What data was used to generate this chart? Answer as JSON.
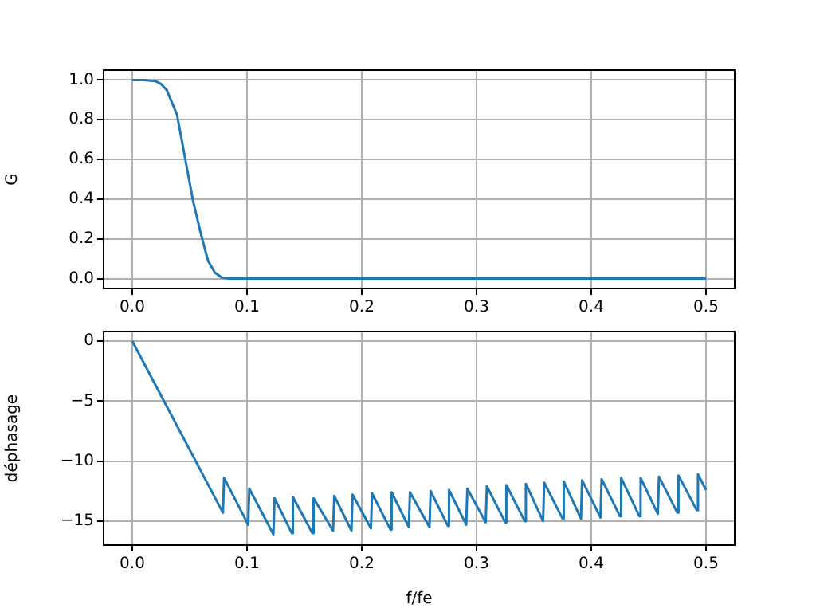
{
  "chart_data": [
    {
      "type": "line",
      "ylabel": "G",
      "color": "#1f77b4",
      "grid": true,
      "x": [
        0,
        0.01,
        0.02,
        0.025,
        0.03,
        0.039,
        0.046,
        0.053,
        0.06,
        0.066,
        0.072,
        0.078,
        0.085,
        0.1,
        0.2,
        0.3,
        0.4,
        0.5
      ],
      "values": [
        1.0,
        1.0,
        0.995,
        0.98,
        0.95,
        0.825,
        0.607,
        0.39,
        0.22,
        0.09,
        0.03,
        0.005,
        0,
        0,
        0,
        0,
        0,
        0
      ],
      "xlim": [
        -0.025,
        0.525
      ],
      "ylim": [
        -0.05,
        1.05
      ],
      "xticks": [
        {
          "value": 0,
          "label": "0.0"
        },
        0.1,
        0.2,
        0.3,
        0.4,
        0.5
      ],
      "yticks": [
        {
          "value": 0,
          "label": "0.0"
        },
        0.2,
        0.4,
        0.6,
        0.8,
        {
          "value": 1,
          "label": "1.0"
        }
      ]
    },
    {
      "type": "line",
      "xlabel": "f/fe",
      "ylabel": "déphasage",
      "color": "#1f77b4",
      "grid": true,
      "x": [
        0,
        0.079,
        0.08,
        0.101,
        0.102,
        0.123,
        0.124,
        0.139,
        0.14,
        0.157,
        0.158,
        0.175,
        0.176,
        0.191,
        0.192,
        0.208,
        0.209,
        0.225,
        0.226,
        0.241,
        0.242,
        0.259,
        0.26,
        0.275,
        0.276,
        0.291,
        0.292,
        0.308,
        0.309,
        0.325,
        0.326,
        0.342,
        0.343,
        0.358,
        0.359,
        0.375,
        0.376,
        0.391,
        0.392,
        0.408,
        0.409,
        0.425,
        0.426,
        0.442,
        0.443,
        0.458,
        0.459,
        0.475,
        0.476,
        0.492,
        0.493,
        0.5
      ],
      "values": [
        0,
        -14.3,
        -11.4,
        -15.3,
        -12.3,
        -16.1,
        -13.1,
        -16.0,
        -13.0,
        -16.0,
        -13.1,
        -15.8,
        -12.9,
        -15.8,
        -12.8,
        -15.6,
        -12.7,
        -15.7,
        -12.6,
        -15.5,
        -12.6,
        -15.5,
        -12.5,
        -15.4,
        -12.4,
        -15.3,
        -12.3,
        -15.1,
        -12.1,
        -15.1,
        -12.0,
        -15.0,
        -11.9,
        -15.0,
        -11.8,
        -14.8,
        -11.7,
        -14.8,
        -11.6,
        -14.7,
        -11.5,
        -14.6,
        -11.4,
        -14.6,
        -11.4,
        -14.4,
        -11.3,
        -14.3,
        -11.2,
        -14.1,
        -11.1,
        -12.4
      ],
      "xlim": [
        -0.025,
        0.525
      ],
      "ylim": [
        -17,
        0.8
      ],
      "xticks": [
        {
          "value": 0,
          "label": "0.0"
        },
        0.1,
        0.2,
        0.3,
        0.4,
        0.5
      ],
      "yticks": [
        {
          "value": -15,
          "label": "−15"
        },
        {
          "value": -10,
          "label": "−10"
        },
        {
          "value": -5,
          "label": "−5"
        },
        0
      ]
    }
  ]
}
